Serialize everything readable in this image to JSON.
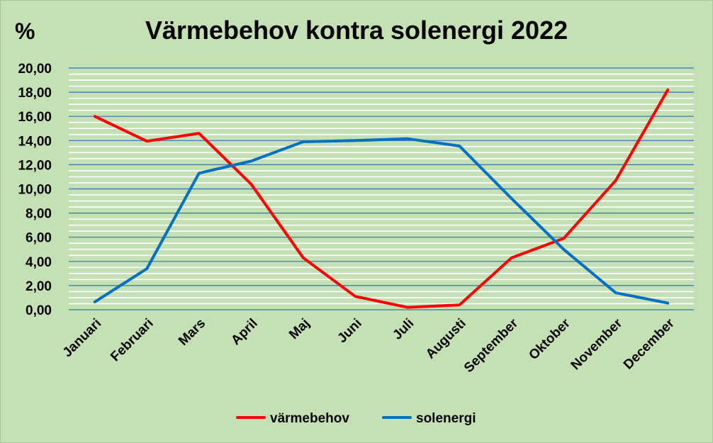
{
  "chart_data": {
    "type": "line",
    "title": "Värmebehov kontra solenergi 2022",
    "ylabel": "%",
    "xlabel": "",
    "categories": [
      "Januari",
      "Februari",
      "Mars",
      "April",
      "Maj",
      "Juni",
      "Juli",
      "Augusti",
      "September",
      "Oktober",
      "November",
      "December"
    ],
    "y_ticks": [
      "0,00",
      "2,00",
      "4,00",
      "6,00",
      "8,00",
      "10,00",
      "12,00",
      "14,00",
      "16,00",
      "18,00",
      "20,00"
    ],
    "ylim": [
      0,
      20
    ],
    "major_step": 2,
    "minor_step": 0.5,
    "grid": true,
    "legend_position": "bottom",
    "series": [
      {
        "name": "värmebehov",
        "color": "#ff0000",
        "values": [
          16.0,
          13.95,
          14.6,
          10.4,
          4.3,
          1.1,
          0.2,
          0.4,
          4.3,
          5.9,
          10.7,
          18.2
        ]
      },
      {
        "name": "solenergi",
        "color": "#0070c0",
        "values": [
          0.65,
          3.4,
          11.3,
          12.3,
          13.9,
          14.0,
          14.15,
          13.55,
          9.2,
          5.0,
          1.4,
          0.55
        ]
      }
    ],
    "colors": {
      "background": "#c5e0b4",
      "major_grid": "#2e75b6",
      "minor_grid": "#ffffff"
    }
  }
}
